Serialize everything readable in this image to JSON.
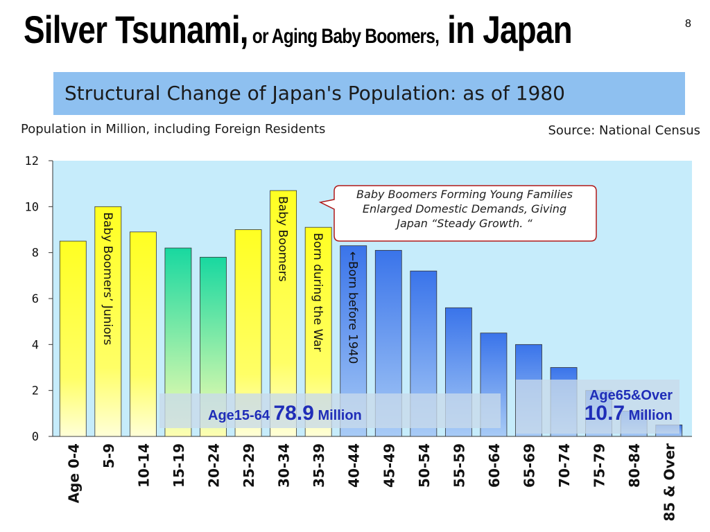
{
  "slide": {
    "title_part1": "Silver Tsunami,",
    "title_part2": " or Aging Baby Boomers,",
    "title_part3": " in Japan",
    "page_number": "8"
  },
  "banner": {
    "title": "Structural Change of Japan's Population: as of 1980"
  },
  "chart_data": {
    "type": "bar",
    "title": "Structural Change of Japan's Population: as of 1980",
    "ylabel": "Population in Million, including Foreign Residents",
    "source": "Source: National Census",
    "categories": [
      "Age 0-4",
      "5-9",
      "10-14",
      "15-19",
      "20-24",
      "25-29",
      "30-34",
      "35-39",
      "40-44",
      "45-49",
      "50-54",
      "55-59",
      "60-64",
      "65-69",
      "70-74",
      "75-79",
      "80-84",
      "85 & Over"
    ],
    "values": [
      8.5,
      10.0,
      8.9,
      8.2,
      7.8,
      9.0,
      10.7,
      9.1,
      8.3,
      8.1,
      7.2,
      5.6,
      4.5,
      4.0,
      3.0,
      2.0,
      1.1,
      0.5
    ],
    "ylim": [
      0,
      12
    ],
    "yticks": [
      0,
      2,
      4,
      6,
      8,
      10,
      12
    ],
    "grid": false,
    "bar_colors": [
      "#ffff22",
      "#ffff44",
      "#ffff33",
      "#22d0a0",
      "#33c8a8",
      "#ffff22",
      "#ffff22",
      "#ffff22",
      "#3a78e8",
      "#3a78e8",
      "#3a78e8",
      "#3a78e8",
      "#3a78e8",
      "#3a78e8",
      "#3a78e8",
      "#3a78e8",
      "#3a78e8",
      "#3a78e8"
    ],
    "bar_annotations": [
      {
        "category": "5-9",
        "text": "Baby Boomers’ Juniors"
      },
      {
        "category": "30-34",
        "text": "Baby Boomers"
      },
      {
        "category": "35-39",
        "text": "Born during the War"
      },
      {
        "category": "40-44",
        "text": "←Born before 1940"
      }
    ],
    "callout": {
      "line1": "Baby Boomers Forming Young Families",
      "line2": "Enlarged Domestic Demands, Giving",
      "line3": "Japan “Steady Growth. “"
    },
    "summaries": {
      "working": {
        "label": "Age15-64",
        "value": "78.9",
        "unit": "Million"
      },
      "elderly": {
        "label": "Age65&Over",
        "value": "10.7",
        "unit": "Million"
      }
    }
  }
}
